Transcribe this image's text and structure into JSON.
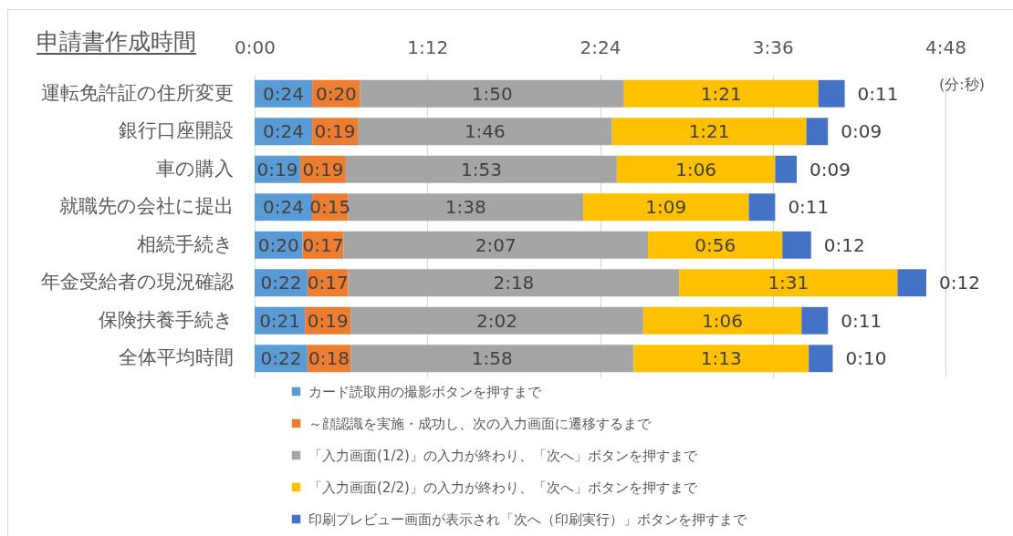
{
  "chart_data": {
    "type": "bar",
    "orientation": "horizontal",
    "stacked": true,
    "title": "申請書作成時間",
    "categories": [
      "運転免許証の住所変更",
      "銀行口座開設",
      "車の購入",
      "就職先の会社に提出",
      "相続手続き",
      "年金受給者の現況確認",
      "保険扶養手続き",
      "全体平均時間"
    ],
    "series": [
      {
        "name": "カード読取用の撮影ボタンを押すまで",
        "color": "#5b9bd5",
        "values": [
          24,
          24,
          19,
          24,
          20,
          22,
          21,
          22
        ],
        "value_labels": [
          "0:24",
          "0:24",
          "0:19",
          "0:24",
          "0:20",
          "0:22",
          "0:21",
          "0:22"
        ]
      },
      {
        "name": "～顔認識を実施・成功し、次の入力画面に遷移するまで",
        "color": "#ed7d31",
        "values": [
          20,
          19,
          19,
          15,
          17,
          17,
          19,
          18
        ],
        "value_labels": [
          "0:20",
          "0:19",
          "0:19",
          "0:15",
          "0:17",
          "0:17",
          "0:19",
          "0:18"
        ]
      },
      {
        "name": "「入力画面(1/2)」の入力が終わり、「次へ」ボタンを押すまで",
        "color": "#a5a5a5",
        "values": [
          110,
          106,
          113,
          98,
          127,
          138,
          122,
          118
        ],
        "value_labels": [
          "1:50",
          "1:46",
          "1:53",
          "1:38",
          "2:07",
          "2:18",
          "2:02",
          "1:58"
        ]
      },
      {
        "name": "「入力画面(2/2)」の入力が終わり、「次へ」ボタンを押すまで",
        "color": "#ffc000",
        "values": [
          81,
          81,
          66,
          69,
          56,
          91,
          66,
          73
        ],
        "value_labels": [
          "1:21",
          "1:21",
          "1:06",
          "1:09",
          "0:56",
          "1:31",
          "1:06",
          "1:13"
        ]
      },
      {
        "name": "印刷プレビュー画面が表示され「次へ（印刷実行）」ボタンを押すまで",
        "color": "#4472c4",
        "values": [
          11,
          9,
          9,
          11,
          12,
          12,
          11,
          10
        ],
        "value_labels": [
          "0:11",
          "0:09",
          "0:09",
          "0:11",
          "0:12",
          "0:12",
          "0:11",
          "0:10"
        ]
      }
    ],
    "xlim": [
      0,
      288
    ],
    "xticks": [
      {
        "value": 0,
        "label": "0:00"
      },
      {
        "value": 72,
        "label": "1:12"
      },
      {
        "value": 144,
        "label": "2:24"
      },
      {
        "value": 216,
        "label": "3:36"
      },
      {
        "value": 288,
        "label": "4:48"
      }
    ],
    "grid": "x",
    "legend": "bottom",
    "annotations": [
      "(分:秒)"
    ]
  }
}
